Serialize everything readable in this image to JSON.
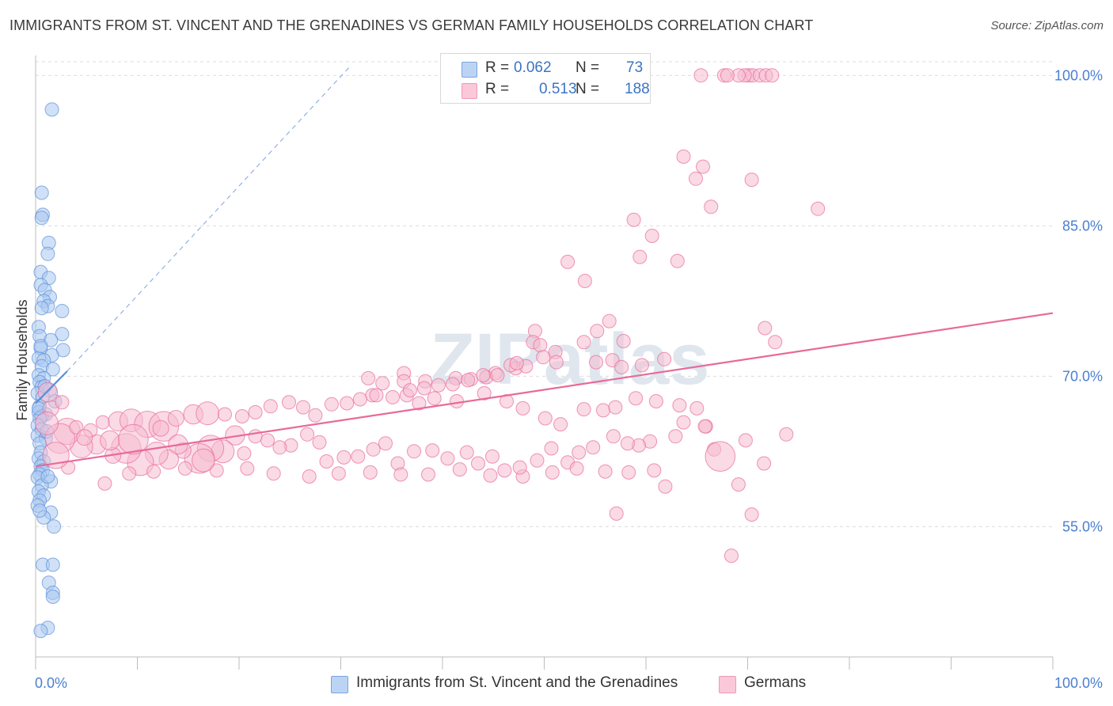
{
  "title": "IMMIGRANTS FROM ST. VINCENT AND THE GRENADINES VS GERMAN FAMILY HOUSEHOLDS CORRELATION CHART",
  "source": "Source: ZipAtlas.com",
  "watermark": "ZIPatlas",
  "legend_box": {
    "rows": [
      {
        "swatch_color": "#a9c8f0",
        "r_label": "R =",
        "r_value": "0.062",
        "n_label": "N =",
        "n_value": "73"
      },
      {
        "swatch_color": "#f6bcd0",
        "r_label": "R =",
        "r_value": "0.513",
        "n_label": "N =",
        "n_value": "188"
      }
    ]
  },
  "bottom_legend": [
    {
      "label": "Immigrants from St. Vincent and the Grenadines",
      "color": "#a9c8f0"
    },
    {
      "label": "Germans",
      "color": "#f6bcd0"
    }
  ],
  "chart_data": {
    "type": "scatter",
    "title": "IMMIGRANTS FROM ST. VINCENT AND THE GRENADINES VS GERMAN FAMILY HOUSEHOLDS CORRELATION CHART",
    "xlabel": "",
    "ylabel": "Family Households",
    "xlim": [
      0,
      100
    ],
    "ylim": [
      42,
      102
    ],
    "x_tick_labels": [
      "0.0%",
      "100.0%"
    ],
    "y_tick_labels": [
      "55.0%",
      "70.0%",
      "85.0%",
      "100.0%"
    ],
    "y_ticks": [
      55,
      70,
      85,
      100
    ],
    "grid": true,
    "legend_position": "bottom",
    "series": [
      {
        "name": "Immigrants from St. Vincent and the Grenadines",
        "color": "#5b8ed8",
        "fill": "#a9c8f0",
        "points": [
          [
            1.6,
            96.6
          ],
          [
            0.6,
            88.3
          ],
          [
            0.7,
            86.1
          ],
          [
            0.6,
            85.8
          ],
          [
            1.3,
            83.3
          ],
          [
            1.2,
            82.2
          ],
          [
            0.5,
            80.4
          ],
          [
            1.3,
            79.8
          ],
          [
            0.5,
            79.1
          ],
          [
            0.9,
            78.6
          ],
          [
            1.4,
            77.9
          ],
          [
            0.8,
            77.5
          ],
          [
            1.2,
            77.0
          ],
          [
            0.6,
            76.8
          ],
          [
            2.6,
            76.5
          ],
          [
            0.3,
            74.9
          ],
          [
            0.4,
            74.0
          ],
          [
            2.6,
            74.2
          ],
          [
            1.5,
            73.6
          ],
          [
            0.5,
            72.8
          ],
          [
            2.7,
            72.6
          ],
          [
            1.6,
            72.1
          ],
          [
            0.3,
            71.8
          ],
          [
            0.8,
            71.6
          ],
          [
            0.6,
            71.0
          ],
          [
            1.7,
            70.7
          ],
          [
            0.3,
            70.1
          ],
          [
            0.8,
            69.8
          ],
          [
            0.4,
            69.4
          ],
          [
            0.6,
            68.9
          ],
          [
            1.4,
            68.6
          ],
          [
            0.2,
            68.3
          ],
          [
            0.7,
            67.9
          ],
          [
            1.9,
            67.5
          ],
          [
            0.4,
            67.0
          ],
          [
            0.3,
            66.4
          ],
          [
            1.0,
            66.2
          ],
          [
            0.6,
            66.0
          ],
          [
            0.4,
            65.8
          ],
          [
            0.2,
            65.1
          ],
          [
            0.6,
            64.7
          ],
          [
            0.2,
            64.1
          ],
          [
            1.0,
            63.8
          ],
          [
            0.4,
            63.3
          ],
          [
            0.5,
            62.4
          ],
          [
            0.3,
            61.8
          ],
          [
            0.8,
            61.5
          ],
          [
            0.5,
            61.0
          ],
          [
            0.7,
            60.6
          ],
          [
            0.4,
            60.2
          ],
          [
            0.2,
            59.9
          ],
          [
            1.5,
            59.5
          ],
          [
            0.6,
            59.1
          ],
          [
            0.3,
            58.5
          ],
          [
            0.8,
            58.1
          ],
          [
            0.4,
            57.6
          ],
          [
            0.2,
            57.1
          ],
          [
            1.5,
            56.4
          ],
          [
            0.8,
            55.9
          ],
          [
            1.8,
            55.0
          ],
          [
            0.7,
            51.2
          ],
          [
            1.7,
            51.2
          ],
          [
            1.3,
            49.4
          ],
          [
            1.7,
            48.4
          ],
          [
            1.7,
            48.0
          ],
          [
            1.2,
            44.9
          ],
          [
            0.5,
            44.6
          ],
          [
            0.3,
            66.8
          ],
          [
            1.1,
            64.5
          ],
          [
            0.9,
            69.0
          ],
          [
            0.5,
            73.0
          ],
          [
            1.2,
            60.0
          ],
          [
            0.4,
            56.6
          ]
        ],
        "trend": {
          "x": [
            0.0,
            3.1
          ],
          "y": [
            67.3,
            70.5
          ],
          "extended_to": [
            31.0,
            101.0
          ]
        }
      },
      {
        "name": "Germans",
        "color": "#e86a98",
        "fill": "#f6bcd0",
        "points": [
          [
            70.1,
            100.0
          ],
          [
            70.5,
            100.0
          ],
          [
            71.2,
            100.0
          ],
          [
            71.8,
            100.0
          ],
          [
            69.7,
            100.0
          ],
          [
            65.4,
            100.0
          ],
          [
            67.7,
            100.0
          ],
          [
            69.1,
            100.0
          ],
          [
            72.4,
            100.0
          ],
          [
            68.0,
            100.0
          ],
          [
            63.7,
            91.9
          ],
          [
            65.6,
            90.9
          ],
          [
            64.9,
            89.7
          ],
          [
            70.4,
            89.6
          ],
          [
            66.4,
            86.9
          ],
          [
            58.8,
            85.6
          ],
          [
            76.9,
            86.7
          ],
          [
            60.6,
            84.0
          ],
          [
            59.4,
            81.9
          ],
          [
            63.1,
            81.5
          ],
          [
            52.3,
            81.4
          ],
          [
            54.0,
            79.5
          ],
          [
            56.4,
            75.5
          ],
          [
            55.2,
            74.5
          ],
          [
            49.1,
            74.5
          ],
          [
            57.8,
            73.5
          ],
          [
            53.9,
            73.4
          ],
          [
            48.9,
            73.4
          ],
          [
            51.1,
            72.4
          ],
          [
            49.6,
            73.1
          ],
          [
            49.9,
            71.9
          ],
          [
            51.2,
            71.4
          ],
          [
            47.2,
            70.8
          ],
          [
            48.2,
            71.0
          ],
          [
            55.1,
            71.4
          ],
          [
            56.7,
            71.6
          ],
          [
            57.6,
            70.9
          ],
          [
            59.6,
            71.1
          ],
          [
            61.8,
            71.7
          ],
          [
            71.7,
            74.8
          ],
          [
            72.7,
            73.4
          ],
          [
            46.7,
            71.1
          ],
          [
            45.2,
            70.3
          ],
          [
            44.3,
            69.9
          ],
          [
            42.8,
            69.7
          ],
          [
            41.3,
            69.8
          ],
          [
            38.3,
            69.5
          ],
          [
            36.2,
            70.3
          ],
          [
            36.2,
            69.5
          ],
          [
            34.1,
            69.3
          ],
          [
            32.7,
            69.8
          ],
          [
            33.1,
            68.1
          ],
          [
            36.5,
            68.1
          ],
          [
            37.7,
            67.3
          ],
          [
            39.2,
            67.8
          ],
          [
            41.4,
            67.5
          ],
          [
            44.1,
            68.3
          ],
          [
            46.3,
            67.5
          ],
          [
            47.9,
            66.8
          ],
          [
            50.1,
            65.8
          ],
          [
            51.6,
            65.2
          ],
          [
            53.9,
            66.7
          ],
          [
            55.8,
            66.6
          ],
          [
            57.0,
            66.9
          ],
          [
            59.0,
            67.8
          ],
          [
            61.0,
            67.5
          ],
          [
            63.3,
            67.1
          ],
          [
            65.0,
            66.8
          ],
          [
            65.9,
            65.0
          ],
          [
            63.7,
            65.4
          ],
          [
            62.9,
            64.0
          ],
          [
            60.4,
            63.5
          ],
          [
            59.3,
            63.1
          ],
          [
            58.2,
            63.3
          ],
          [
            56.8,
            64.0
          ],
          [
            54.8,
            62.9
          ],
          [
            53.4,
            62.4
          ],
          [
            52.3,
            61.4
          ],
          [
            50.7,
            62.8
          ],
          [
            49.3,
            61.6
          ],
          [
            47.9,
            60.0
          ],
          [
            46.1,
            60.6
          ],
          [
            44.9,
            62.0
          ],
          [
            43.5,
            61.3
          ],
          [
            42.4,
            62.4
          ],
          [
            40.5,
            61.8
          ],
          [
            39.0,
            62.6
          ],
          [
            37.2,
            62.5
          ],
          [
            35.6,
            61.3
          ],
          [
            34.4,
            63.3
          ],
          [
            33.2,
            62.7
          ],
          [
            31.7,
            62.0
          ],
          [
            30.3,
            61.9
          ],
          [
            28.6,
            61.5
          ],
          [
            27.9,
            63.4
          ],
          [
            26.7,
            64.2
          ],
          [
            25.1,
            63.1
          ],
          [
            24.0,
            62.9
          ],
          [
            22.8,
            63.6
          ],
          [
            21.6,
            64.0
          ],
          [
            20.5,
            62.3
          ],
          [
            19.6,
            64.1
          ],
          [
            18.4,
            62.5
          ],
          [
            17.2,
            62.8
          ],
          [
            16.1,
            61.8
          ],
          [
            14.5,
            62.6
          ],
          [
            13.1,
            61.7
          ],
          [
            11.9,
            62.3
          ],
          [
            10.3,
            61.4
          ],
          [
            8.9,
            62.8
          ],
          [
            7.6,
            62.1
          ],
          [
            6.0,
            63.2
          ],
          [
            4.5,
            63.0
          ],
          [
            3.1,
            64.5
          ],
          [
            2.4,
            63.8
          ],
          [
            1.5,
            66.8
          ],
          [
            1.2,
            68.4
          ],
          [
            2.6,
            67.4
          ],
          [
            4.0,
            64.9
          ],
          [
            5.4,
            64.6
          ],
          [
            6.6,
            65.4
          ],
          [
            8.1,
            65.5
          ],
          [
            9.4,
            65.6
          ],
          [
            11.0,
            65.2
          ],
          [
            12.6,
            65.0
          ],
          [
            13.8,
            65.8
          ],
          [
            15.5,
            66.2
          ],
          [
            16.9,
            66.3
          ],
          [
            18.6,
            66.2
          ],
          [
            20.3,
            66.0
          ],
          [
            21.6,
            66.4
          ],
          [
            23.1,
            67.0
          ],
          [
            24.9,
            67.4
          ],
          [
            26.3,
            66.9
          ],
          [
            27.5,
            66.1
          ],
          [
            29.1,
            67.2
          ],
          [
            30.6,
            67.3
          ],
          [
            31.9,
            67.7
          ],
          [
            33.5,
            68.1
          ],
          [
            35.1,
            67.9
          ],
          [
            36.8,
            68.6
          ],
          [
            38.2,
            68.8
          ],
          [
            39.6,
            69.1
          ],
          [
            41.0,
            69.2
          ],
          [
            42.5,
            69.6
          ],
          [
            44.0,
            70.1
          ],
          [
            45.4,
            70.1
          ],
          [
            47.3,
            71.3
          ],
          [
            6.8,
            59.3
          ],
          [
            3.2,
            60.9
          ],
          [
            9.2,
            60.3
          ],
          [
            11.6,
            60.5
          ],
          [
            14.7,
            60.8
          ],
          [
            17.8,
            60.6
          ],
          [
            20.8,
            60.8
          ],
          [
            23.4,
            60.3
          ],
          [
            26.9,
            60.0
          ],
          [
            29.8,
            60.3
          ],
          [
            32.9,
            60.4
          ],
          [
            35.9,
            60.2
          ],
          [
            38.6,
            60.2
          ],
          [
            41.7,
            60.7
          ],
          [
            44.7,
            60.1
          ],
          [
            47.6,
            60.9
          ],
          [
            50.8,
            60.4
          ],
          [
            53.2,
            60.8
          ],
          [
            56.0,
            60.5
          ],
          [
            58.3,
            60.4
          ],
          [
            60.8,
            60.6
          ],
          [
            65.8,
            65.0
          ],
          [
            66.7,
            62.7
          ],
          [
            69.8,
            63.6
          ],
          [
            71.6,
            61.3
          ],
          [
            73.8,
            64.2
          ],
          [
            69.1,
            59.2
          ],
          [
            70.4,
            56.2
          ],
          [
            68.4,
            52.1
          ],
          [
            57.1,
            56.3
          ],
          [
            61.9,
            59.0
          ],
          [
            67.3,
            62.0
          ],
          [
            4.8,
            63.9
          ],
          [
            7.3,
            63.6
          ],
          [
            1.1,
            65.3
          ],
          [
            2.0,
            62.1
          ],
          [
            9.6,
            63.7
          ],
          [
            12.3,
            64.8
          ],
          [
            14.0,
            63.2
          ],
          [
            16.5,
            61.6
          ]
        ],
        "trend": {
          "x": [
            0.0,
            100.0
          ],
          "y": [
            61.0,
            76.3
          ]
        }
      }
    ]
  }
}
